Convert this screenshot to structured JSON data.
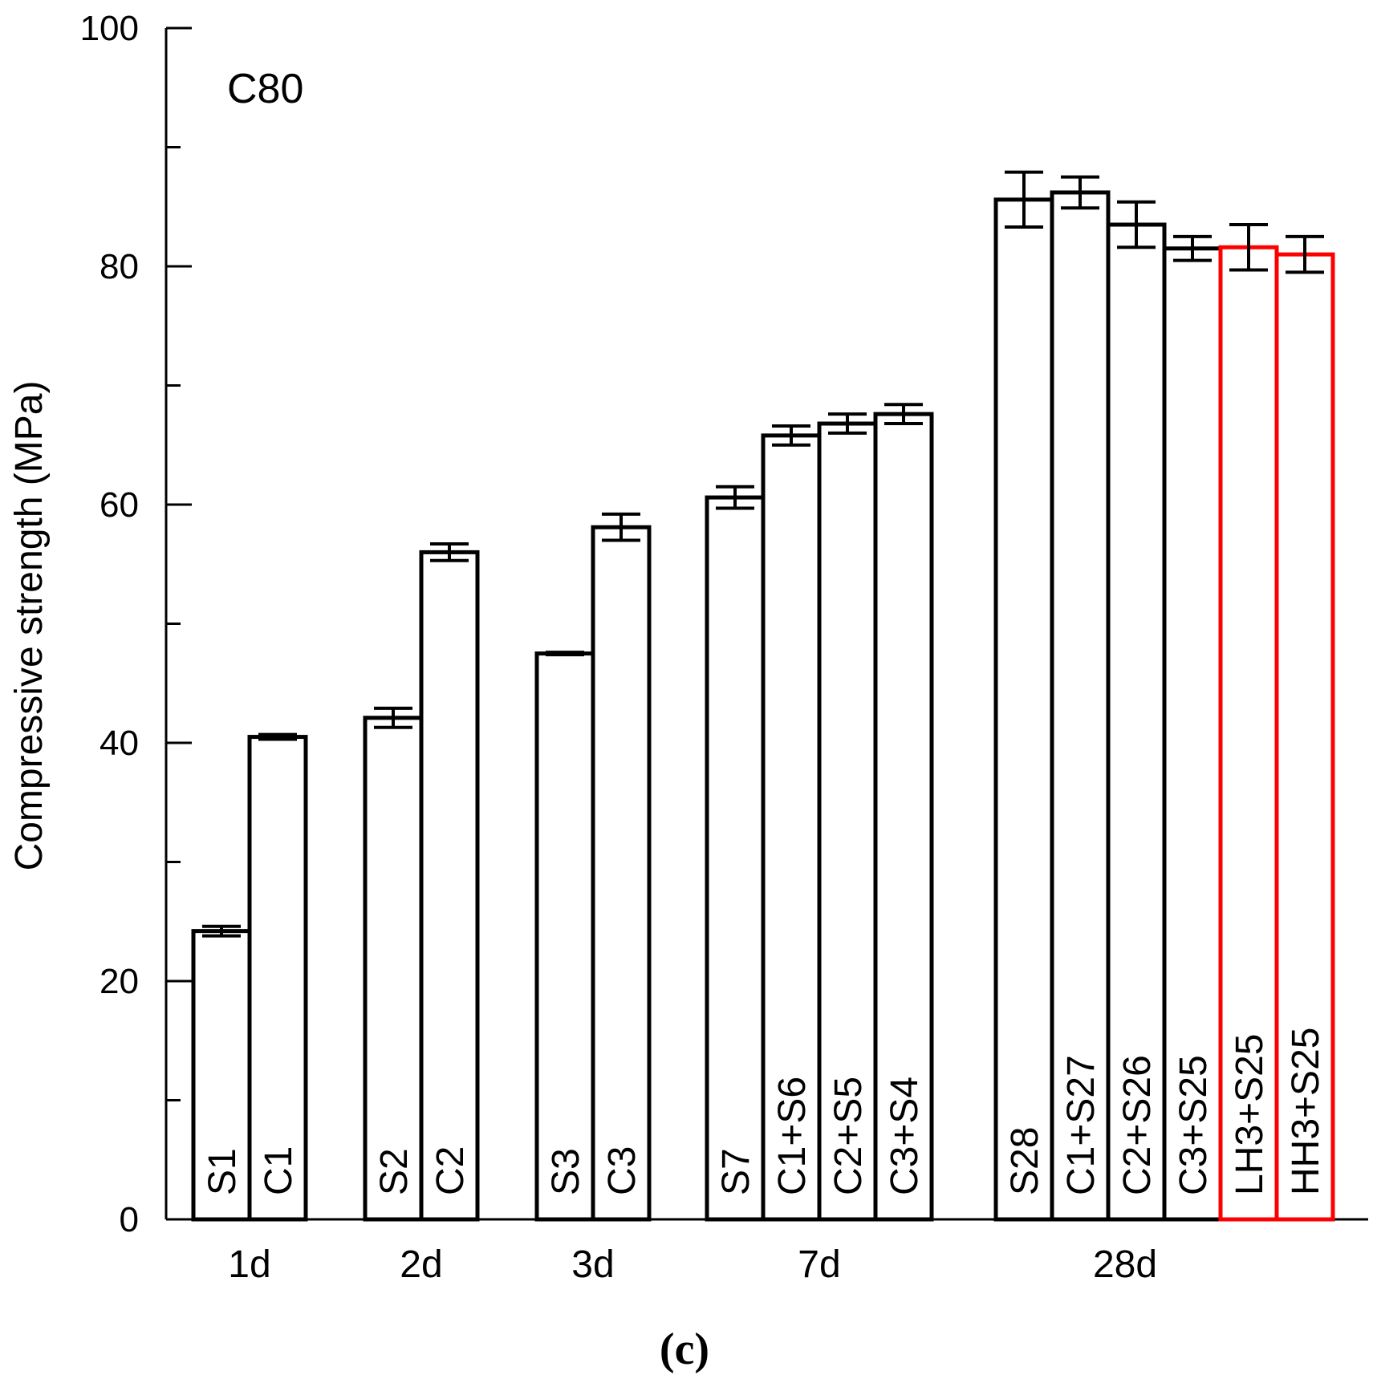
{
  "chart_data": {
    "type": "bar",
    "annotation": "C80",
    "ylabel": "Compressive strength (MPa)",
    "ylim": [
      0,
      100
    ],
    "yticks": [
      0,
      20,
      40,
      60,
      80,
      100
    ],
    "caption": "(c)",
    "default_color": "#000000",
    "highlight_color": "#ff0000",
    "groups": [
      "1d",
      "2d",
      "3d",
      "7d",
      "28d"
    ],
    "bars": [
      {
        "label": "S1",
        "group": "1d",
        "value": 24.2,
        "error": 0.4,
        "highlight": false
      },
      {
        "label": "C1",
        "group": "1d",
        "value": 40.5,
        "error": 0.2,
        "highlight": false
      },
      {
        "label": "S2",
        "group": "2d",
        "value": 42.1,
        "error": 0.8,
        "highlight": false
      },
      {
        "label": "C2",
        "group": "2d",
        "value": 56.0,
        "error": 0.7,
        "highlight": false
      },
      {
        "label": "S3",
        "group": "3d",
        "value": 47.5,
        "error": 0.1,
        "highlight": false
      },
      {
        "label": "C3",
        "group": "3d",
        "value": 58.1,
        "error": 1.1,
        "highlight": false
      },
      {
        "label": "S7",
        "group": "7d",
        "value": 60.6,
        "error": 0.9,
        "highlight": false
      },
      {
        "label": "C1+S6",
        "group": "7d",
        "value": 65.8,
        "error": 0.8,
        "highlight": false
      },
      {
        "label": "C2+S5",
        "group": "7d",
        "value": 66.8,
        "error": 0.8,
        "highlight": false
      },
      {
        "label": "C3+S4",
        "group": "7d",
        "value": 67.6,
        "error": 0.8,
        "highlight": false
      },
      {
        "label": "S28",
        "group": "28d",
        "value": 85.6,
        "error": 2.3,
        "highlight": false
      },
      {
        "label": "C1+S27",
        "group": "28d",
        "value": 86.2,
        "error": 1.3,
        "highlight": false
      },
      {
        "label": "C2+S26",
        "group": "28d",
        "value": 83.5,
        "error": 1.9,
        "highlight": false
      },
      {
        "label": "C3+S25",
        "group": "28d",
        "value": 81.5,
        "error": 1.0,
        "highlight": false
      },
      {
        "label": "LH3+S25",
        "group": "28d",
        "value": 81.6,
        "error": 1.9,
        "highlight": true
      },
      {
        "label": "HH3+S25",
        "group": "28d",
        "value": 81.0,
        "error": 1.5,
        "highlight": true
      }
    ]
  }
}
